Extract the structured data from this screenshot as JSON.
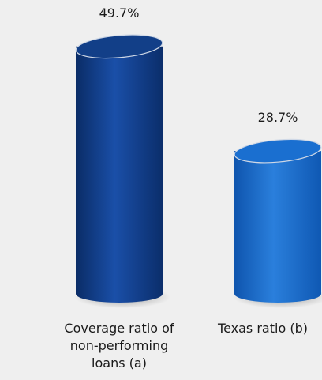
{
  "chart_data": {
    "type": "bar",
    "categories": [
      "Coverage ratio of non-performing loans (a)",
      "Texas ratio (b)"
    ],
    "values": [
      49.7,
      28.7
    ],
    "data_labels": [
      "49.7%",
      "28.7%"
    ],
    "title": "",
    "xlabel": "",
    "ylabel": "",
    "ylim": [
      0,
      53
    ],
    "grid": false,
    "legend": "none",
    "bar_style": "3d-cylinder",
    "colors": {
      "bar_0_body": "#0f3d8a",
      "bar_0_light": "#1d56b5",
      "bar_0_top": "#123f88",
      "bar_1_body": "#1463c4",
      "bar_1_light": "#2a80dd",
      "bar_1_top": "#1a6fd0",
      "background": "#efefef"
    }
  }
}
